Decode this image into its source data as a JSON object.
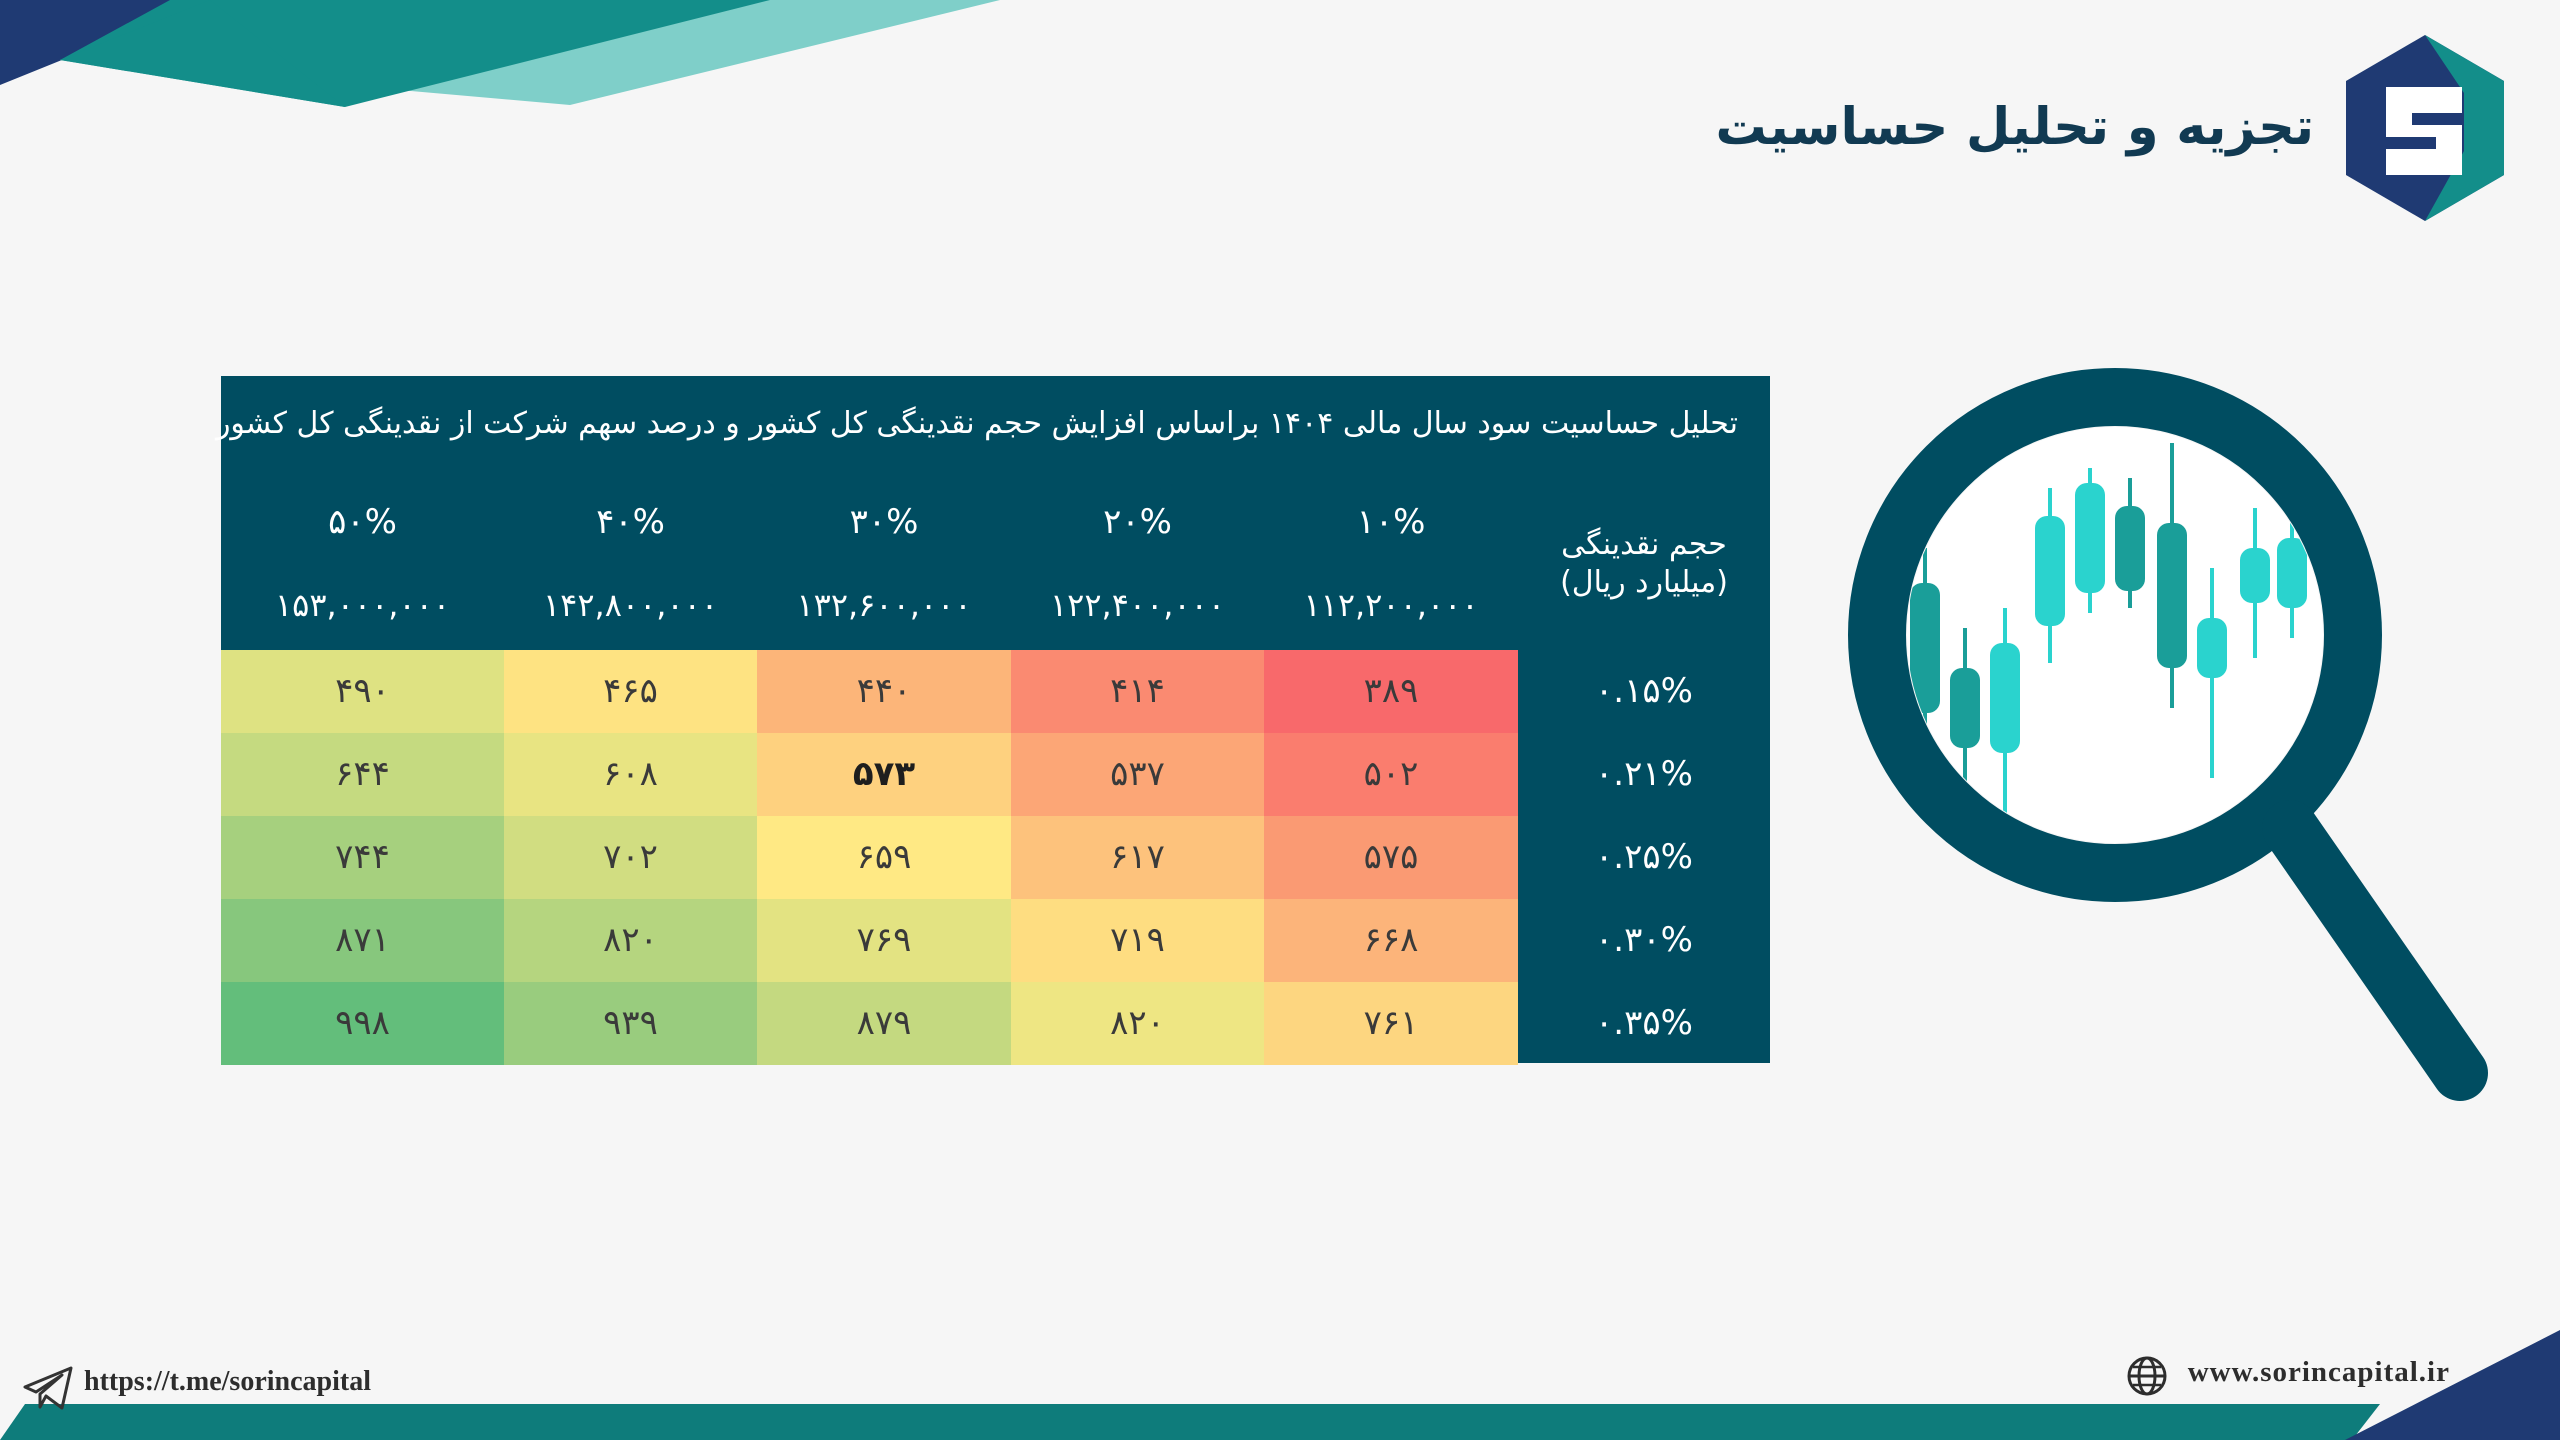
{
  "header": {
    "title": "تجزیه و تحلیل حساسیت"
  },
  "table": {
    "title": "تحلیل حساسیت سود سال مالی ۱۴۰۴ براساس افزایش حجم نقدینگی کل کشور و درصد سهم شرکت از نقدینگی کل کشور",
    "row_axis_title_line1": "حجم نقدینگی",
    "row_axis_title_line2": "(میلیارد ریال)",
    "columns": [
      {
        "pct": "۵۰%",
        "volume": "۱۵۳,۰۰۰,۰۰۰"
      },
      {
        "pct": "۴۰%",
        "volume": "۱۴۲,۸۰۰,۰۰۰"
      },
      {
        "pct": "۳۰%",
        "volume": "۱۳۲,۶۰۰,۰۰۰"
      },
      {
        "pct": "۲۰%",
        "volume": "۱۲۲,۴۰۰,۰۰۰"
      },
      {
        "pct": "۱۰%",
        "volume": "۱۱۲,۲۰۰,۰۰۰"
      }
    ],
    "rows": [
      {
        "label": "۰.۱۵%",
        "cells": [
          "۴۹۰",
          "۴۶۵",
          "۴۴۰",
          "۴۱۴",
          "۳۸۹"
        ]
      },
      {
        "label": "۰.۲۱%",
        "cells": [
          "۶۴۴",
          "۶۰۸",
          "۵۷۳",
          "۵۳۷",
          "۵۰۲"
        ]
      },
      {
        "label": "۰.۲۵%",
        "cells": [
          "۷۴۴",
          "۷۰۲",
          "۶۵۹",
          "۶۱۷",
          "۵۷۵"
        ]
      },
      {
        "label": "۰.۳۰%",
        "cells": [
          "۸۷۱",
          "۸۲۰",
          "۷۶۹",
          "۷۱۹",
          "۶۶۸"
        ]
      },
      {
        "label": "۰.۳۵%",
        "cells": [
          "۹۹۸",
          "۹۳۹",
          "۸۷۹",
          "۸۲۰",
          "۷۶۱"
        ]
      }
    ],
    "cell_colors": [
      [
        "#dee282",
        "#fee382",
        "#fcb579",
        "#fa8a71",
        "#f8696b"
      ],
      [
        "#c5da80",
        "#e8e482",
        "#fed17f",
        "#fca676",
        "#fa7d6e"
      ],
      [
        "#a6d07e",
        "#d1dd81",
        "#ffe984",
        "#fdc27c",
        "#fa9a73"
      ],
      [
        "#87c77d",
        "#b5d57f",
        "#e3e382",
        "#fedd81",
        "#fcb47a"
      ],
      [
        "#63be7b",
        "#99cc7e",
        "#c4d980",
        "#eee683",
        "#fdd680"
      ]
    ],
    "bold_cell": {
      "row": 1,
      "col": 2
    }
  },
  "footer": {
    "telegram": "https://t.me/sorincapital",
    "website": "www.sorincapital.ir"
  },
  "colors": {
    "table_bg": "#004d61",
    "title_color": "#113a52",
    "accent_navy": "#1f3a73",
    "accent_teal": "#138e8a",
    "accent_light_teal": "#7fcfc9"
  }
}
